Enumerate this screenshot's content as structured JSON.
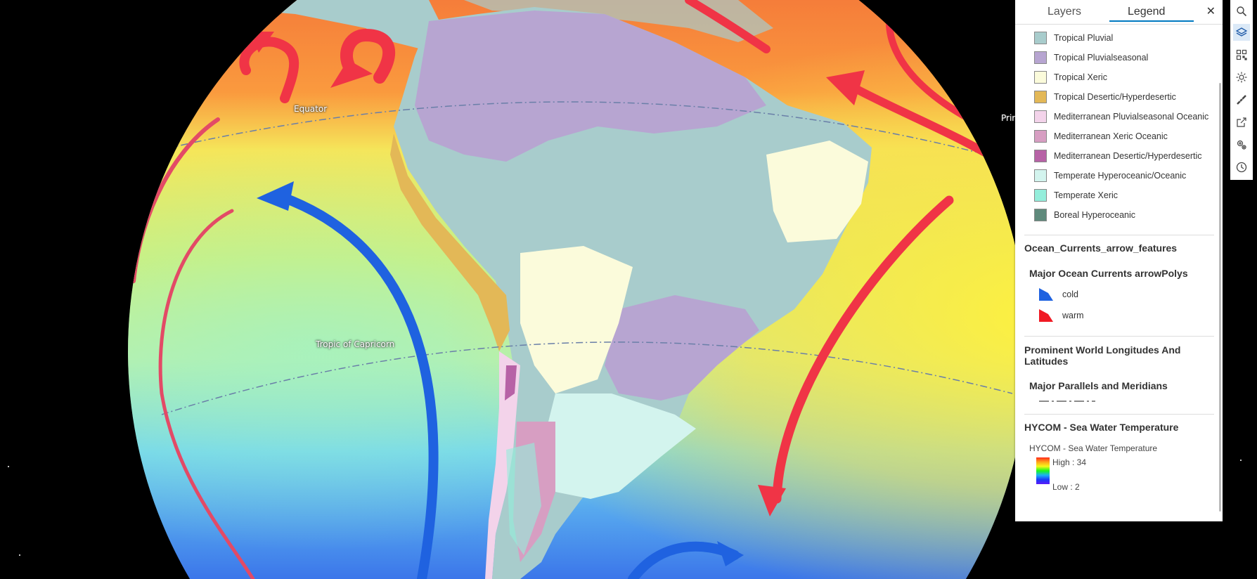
{
  "map": {
    "labels": {
      "equator": "Equator",
      "tropic_capricorn": "Tropic of Capricorn",
      "prime_meridian": "Prim"
    },
    "colors": {
      "background": "#000000",
      "cold_arrow": "#1f62e0",
      "warm_arrow": "#f03446"
    }
  },
  "panel": {
    "tab_layers": "Layers",
    "tab_legend": "Legend",
    "close_glyph": "✕",
    "bioclimate_items": [
      {
        "label": "Tropical Pluvial",
        "color": "#a8cccc"
      },
      {
        "label": "Tropical Pluvialseasonal",
        "color": "#b7a5d1"
      },
      {
        "label": "Tropical Xeric",
        "color": "#fbfbdb"
      },
      {
        "label": "Tropical Desertic/Hyperdesertic",
        "color": "#e3b857"
      },
      {
        "label": "Mediterranean Pluvialseasonal Oceanic",
        "color": "#f3d3ea"
      },
      {
        "label": "Mediterranean Xeric Oceanic",
        "color": "#d79ec2"
      },
      {
        "label": "Mediterranean Desertic/Hyperdesertic",
        "color": "#b762a6"
      },
      {
        "label": "Temperate Hyperoceanic/Oceanic",
        "color": "#d3f4ee"
      },
      {
        "label": "Temperate Xeric",
        "color": "#94eedb"
      },
      {
        "label": "Boreal Hyperoceanic",
        "color": "#5f8a7c"
      }
    ],
    "currents_layer": "Ocean_Currents_arrow_features",
    "currents_sublayer": "Major Ocean Currents arrowPolys",
    "currents_items": [
      {
        "label": "cold",
        "color": "#1f62e0"
      },
      {
        "label": "warm",
        "color": "#f01a24"
      }
    ],
    "latlong_layer": "Prominent World Longitudes And Latitudes",
    "latlong_sublayer": "Major Parallels and Meridians",
    "hycom_layer": "HYCOM - Sea Water Temperature",
    "hycom_sublayer": "HYCOM - Sea Water Temperature",
    "hycom_high": "High : 34",
    "hycom_low": "Low : 2"
  },
  "toolbar": {
    "tools": [
      "search-icon",
      "layers-icon",
      "qr-grid-icon",
      "sun-icon",
      "measure-icon",
      "share-icon",
      "settings-icon",
      "clock-icon"
    ],
    "active_tool": "layers-icon"
  }
}
